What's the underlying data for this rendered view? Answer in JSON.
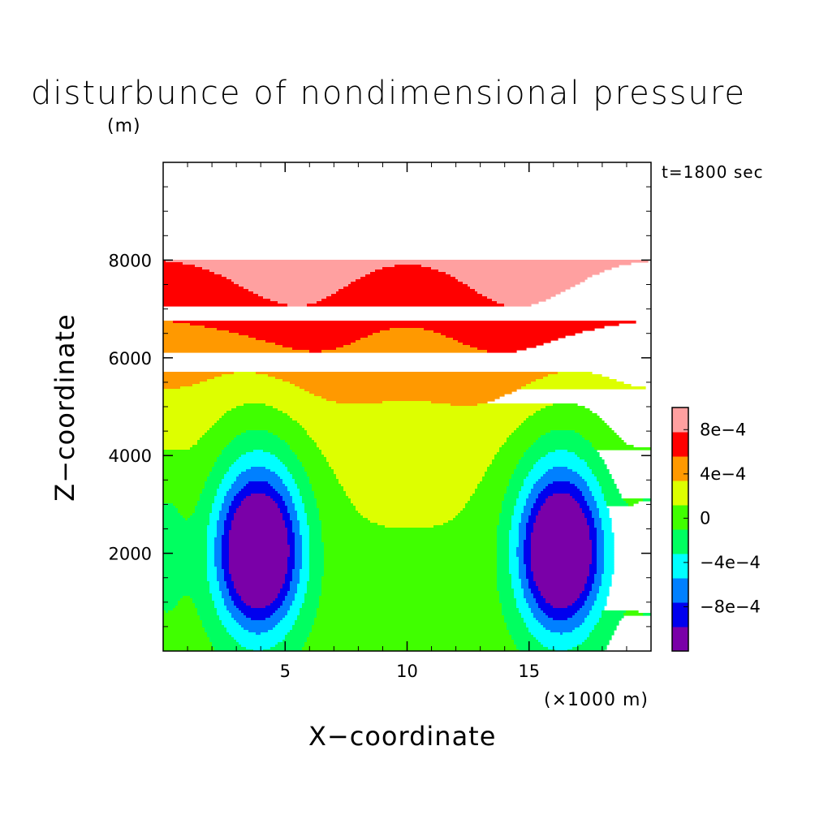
{
  "chart_data": {
    "type": "heatmap",
    "title": "disturbunce of nondimensional pressure",
    "y_unit": "(m)",
    "annotation": "t=1800 sec",
    "xlabel": "X−coordinate",
    "x_unit": "(×1000 m)",
    "ylabel": "Z−coordinate",
    "xlim": [
      0,
      20
    ],
    "ylim": [
      0,
      10000
    ],
    "x_ticks": [
      "5",
      "10",
      "15"
    ],
    "y_ticks": [
      "2000",
      "4000",
      "6000",
      "8000"
    ],
    "x_tick_values": [
      5,
      10,
      15
    ],
    "y_tick_values": [
      2000,
      4000,
      6000,
      8000
    ],
    "colorbar": {
      "levels": [
        -0.0012,
        -0.001,
        -0.0008,
        -0.0006,
        -0.0004,
        -0.0002,
        0,
        0.0002,
        0.0004,
        0.0006,
        0.0008,
        0.001
      ],
      "colors": [
        "#7a00a8",
        "#0000ee",
        "#0080ff",
        "#00ffff",
        "#00ff60",
        "#40ff00",
        "#ddff00",
        "#ff9900",
        "#ff0000",
        "#ffa0a0"
      ],
      "labels": [
        {
          "text": "8e−4",
          "value": 0.0008
        },
        {
          "text": "4e−4",
          "value": 0.0004
        },
        {
          "text": "0",
          "value": 0
        },
        {
          "text": "−4e−4",
          "value": -0.0004
        },
        {
          "text": "−8e−4",
          "value": -0.0008
        }
      ]
    },
    "field": {
      "description_levels": "contour-filled field symmetric about x=10",
      "min_centers_x": [
        3.9,
        16.3
      ],
      "min_center_z": 2000
    }
  }
}
